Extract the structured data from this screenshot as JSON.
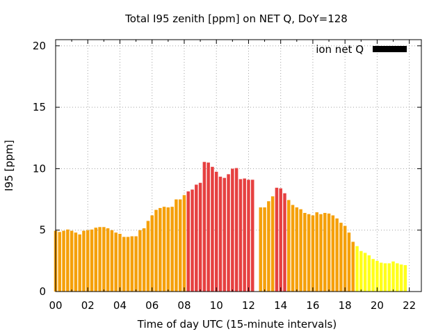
{
  "chart_data": {
    "type": "bar",
    "title": "Total I95 zenith [ppm] on NET Q, DoY=128",
    "xlabel": "Time of day UTC (15-minute intervals)",
    "ylabel": "I95 [ppm]",
    "legend_label": "ion net Q",
    "legend_position": "top-right",
    "grid": true,
    "ylim": [
      0,
      20.5
    ],
    "yticks": [
      0,
      5,
      10,
      15,
      20
    ],
    "xlim": [
      0,
      22.75
    ],
    "xticks": [
      "00",
      "02",
      "04",
      "06",
      "08",
      "10",
      "12",
      "14",
      "16",
      "18",
      "20",
      "22"
    ],
    "interval_hours": 0.25,
    "colors": {
      "orange": "#f5a00a",
      "red": "#e64040",
      "yellow": "#ffff1a",
      "legend": "#000000"
    },
    "values": [
      4.95,
      4.85,
      4.95,
      5.05,
      4.95,
      4.8,
      4.65,
      4.95,
      5.0,
      5.05,
      5.2,
      5.25,
      5.25,
      5.15,
      5.0,
      4.8,
      4.7,
      4.45,
      4.45,
      4.5,
      4.5,
      5.0,
      5.15,
      5.75,
      6.2,
      6.65,
      6.8,
      6.9,
      6.85,
      6.9,
      7.5,
      7.5,
      7.85,
      8.15,
      8.3,
      8.7,
      8.85,
      10.55,
      10.5,
      10.15,
      9.75,
      9.35,
      9.25,
      9.55,
      10.0,
      10.05,
      9.15,
      9.2,
      9.1,
      9.1,
      null,
      6.85,
      6.85,
      7.35,
      7.75,
      8.45,
      8.4,
      8.0,
      7.45,
      7.05,
      6.85,
      6.7,
      6.4,
      6.3,
      6.2,
      6.45,
      6.3,
      6.4,
      6.35,
      6.2,
      5.95,
      5.6,
      5.35,
      4.8,
      4.05,
      3.7,
      3.3,
      3.15,
      2.95,
      2.65,
      2.5,
      2.35,
      2.3,
      2.3,
      2.45,
      2.3,
      2.2,
      2.15
    ],
    "bar_colors": [
      "orange",
      "orange",
      "orange",
      "orange",
      "orange",
      "orange",
      "orange",
      "orange",
      "orange",
      "orange",
      "orange",
      "orange",
      "orange",
      "orange",
      "orange",
      "orange",
      "orange",
      "orange",
      "orange",
      "orange",
      "orange",
      "orange",
      "orange",
      "orange",
      "orange",
      "orange",
      "orange",
      "orange",
      "orange",
      "orange",
      "orange",
      "orange",
      "orange",
      "red",
      "red",
      "red",
      "red",
      "red",
      "red",
      "red",
      "red",
      "red",
      "red",
      "red",
      "red",
      "red",
      "red",
      "red",
      "red",
      "red",
      "red",
      "orange",
      "orange",
      "orange",
      "orange",
      "red",
      "red",
      "red",
      "orange",
      "orange",
      "orange",
      "orange",
      "orange",
      "orange",
      "orange",
      "orange",
      "orange",
      "orange",
      "orange",
      "orange",
      "orange",
      "orange",
      "orange",
      "orange",
      "orange",
      "yellow",
      "yellow",
      "yellow",
      "yellow",
      "yellow",
      "yellow",
      "yellow",
      "yellow",
      "yellow",
      "yellow",
      "yellow",
      "yellow",
      "yellow"
    ]
  }
}
